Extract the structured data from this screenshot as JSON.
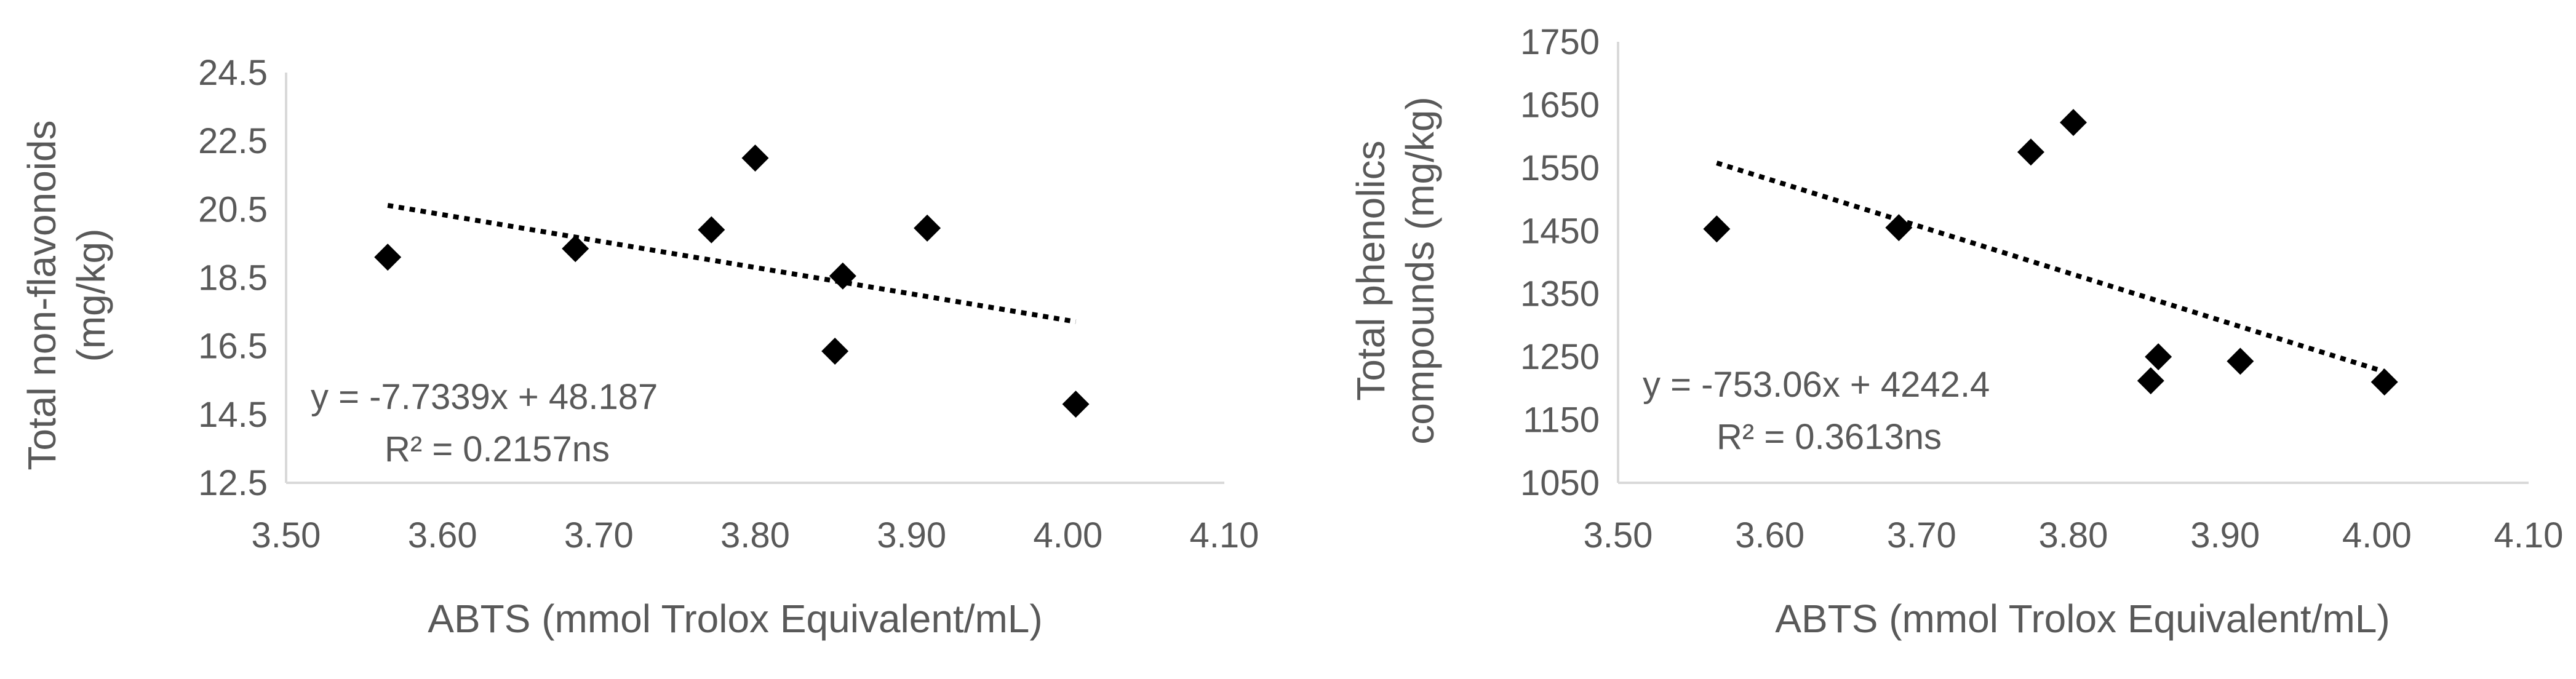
{
  "chart_data": [
    {
      "type": "scatter",
      "xlabel": "ABTS (mmol Trolox Equivalent/mL)",
      "ylabel": [
        "Total non-flavonoids",
        "(mg/kg)"
      ],
      "xlim": [
        3.5,
        4.1
      ],
      "ylim": [
        12.5,
        24.5
      ],
      "xticks": [
        "3.50",
        "3.60",
        "3.70",
        "3.80",
        "3.90",
        "4.00",
        "4.10"
      ],
      "yticks": [
        "12.5",
        "14.5",
        "16.5",
        "18.5",
        "20.5",
        "22.5",
        "24.5"
      ],
      "series": [
        {
          "marker": "diamond",
          "color": "#000000",
          "points": [
            {
              "x": 3.565,
              "y": 19.1
            },
            {
              "x": 3.685,
              "y": 19.35
            },
            {
              "x": 3.772,
              "y": 19.9
            },
            {
              "x": 3.8,
              "y": 22.0
            },
            {
              "x": 3.851,
              "y": 16.35
            },
            {
              "x": 3.856,
              "y": 18.55
            },
            {
              "x": 3.91,
              "y": 19.95
            },
            {
              "x": 4.005,
              "y": 14.8
            }
          ]
        }
      ],
      "trendline": {
        "style": "dotted",
        "color": "#000000",
        "slope": -7.7339,
        "intercept": 48.187,
        "x_range": [
          3.565,
          4.005
        ]
      },
      "equation": "y = -7.7339x + 48.187",
      "r2": "R² = 0.2157ns"
    },
    {
      "type": "scatter",
      "xlabel": "ABTS (mmol Trolox Equivalent/mL)",
      "ylabel": [
        "Total phenolics",
        "compounds (mg/kg)"
      ],
      "xlim": [
        3.5,
        4.1
      ],
      "ylim": [
        1050,
        1750
      ],
      "xticks": [
        "3.50",
        "3.60",
        "3.70",
        "3.80",
        "3.90",
        "4.00",
        "4.10"
      ],
      "yticks": [
        "1050",
        "1150",
        "1250",
        "1350",
        "1450",
        "1550",
        "1650",
        "1750"
      ],
      "series": [
        {
          "marker": "diamond",
          "color": "#000000",
          "points": [
            {
              "x": 3.565,
              "y": 1453
            },
            {
              "x": 3.685,
              "y": 1455
            },
            {
              "x": 3.772,
              "y": 1575
            },
            {
              "x": 3.8,
              "y": 1622
            },
            {
              "x": 3.851,
              "y": 1212
            },
            {
              "x": 3.856,
              "y": 1250
            },
            {
              "x": 3.91,
              "y": 1243
            },
            {
              "x": 4.005,
              "y": 1210
            }
          ]
        }
      ],
      "trendline": {
        "style": "dotted",
        "color": "#000000",
        "slope": -753.06,
        "intercept": 4242.4,
        "x_range": [
          3.565,
          4.005
        ]
      },
      "equation": "y = -753.06x + 4242.4",
      "r2": "R² = 0.3613ns"
    }
  ]
}
